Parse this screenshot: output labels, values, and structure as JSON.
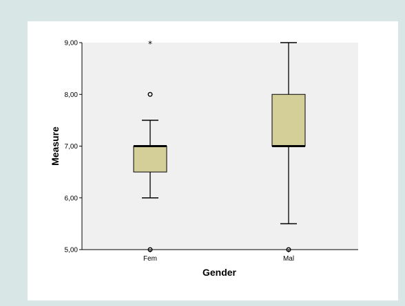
{
  "chart_data": {
    "type": "boxplot",
    "title": "",
    "xlabel": "Gender",
    "ylabel": "Measure",
    "ylim": [
      5,
      9
    ],
    "yticks": [
      5,
      6,
      7,
      8,
      9
    ],
    "ytick_labels": [
      "5,00",
      "6,00",
      "7,00",
      "8,00",
      "9,00"
    ],
    "categories": [
      "Fem",
      "Mal"
    ],
    "grid": false,
    "colors": {
      "plot_background": "#f0f0f0",
      "box_fill": "#d4cf99",
      "outer_background": "#d9e6e6"
    },
    "boxes": [
      {
        "category": "Fem",
        "whisker_low": 6.0,
        "q1": 6.5,
        "median": 7.0,
        "q3": 7.0,
        "whisker_high": 7.5,
        "outliers": [
          8.0,
          5.0
        ],
        "extremes": [
          9.0
        ]
      },
      {
        "category": "Mal",
        "whisker_low": 5.5,
        "q1": 7.0,
        "median": 7.0,
        "q3": 8.0,
        "whisker_high": 9.0,
        "outliers": [
          5.0
        ],
        "extremes": []
      }
    ]
  }
}
